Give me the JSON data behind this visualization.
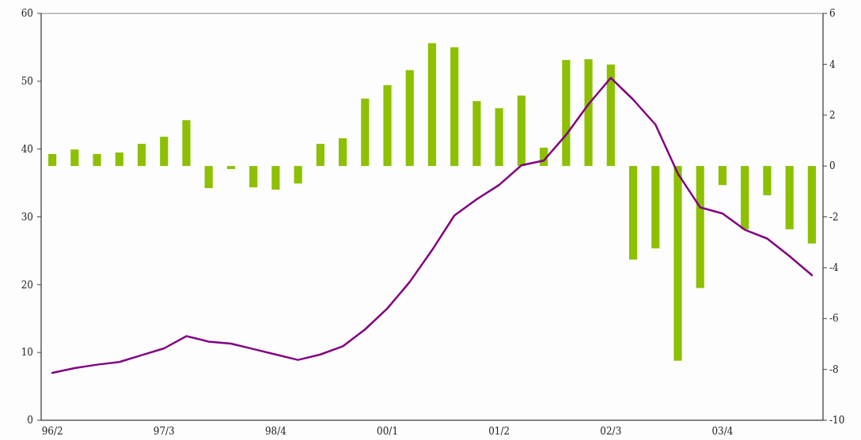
{
  "chart_data": {
    "type": "bar",
    "categories": [
      "96/2",
      null,
      null,
      null,
      null,
      "97/3",
      null,
      null,
      null,
      null,
      "98/4",
      null,
      null,
      null,
      null,
      "00/1",
      null,
      null,
      null,
      null,
      "01/2",
      null,
      null,
      null,
      null,
      "02/3",
      null,
      null,
      null,
      null,
      "03/4",
      null,
      null,
      null,
      null
    ],
    "series": [
      {
        "axis": "y2",
        "color": "#8cc000",
        "values": [
          0.47,
          0.65,
          0.47,
          0.53,
          0.87,
          1.15,
          1.8,
          -0.87,
          -0.12,
          -0.84,
          -0.93,
          -0.69,
          0.87,
          1.09,
          2.65,
          3.18,
          3.77,
          4.83,
          4.67,
          2.55,
          2.27,
          2.77,
          0.72,
          4.17,
          4.2,
          3.99,
          -3.68,
          -3.24,
          -7.66,
          -4.8,
          -0.75,
          -2.49,
          -1.15,
          -2.49,
          -3.05
        ]
      },
      {
        "type": "line",
        "color": "#800080",
        "values": [
          7.0,
          7.7,
          8.2,
          8.6,
          9.6,
          10.6,
          12.4,
          11.6,
          11.3,
          10.5,
          9.7,
          8.9,
          9.7,
          10.9,
          13.4,
          16.5,
          20.4,
          25.1,
          30.2,
          32.6,
          34.7,
          37.6,
          38.3,
          42.1,
          46.6,
          50.5,
          47.3,
          43.6,
          36.4,
          31.4,
          30.5,
          28.1,
          26.8,
          24.2,
          21.4
        ]
      }
    ],
    "ylim": [
      0,
      60
    ],
    "yticks": [
      0,
      10,
      20,
      30,
      40,
      50,
      60
    ],
    "y2lim": [
      -10,
      6
    ],
    "y2ticks": [
      -10,
      -8,
      -6,
      -4,
      -2,
      0,
      2,
      4,
      6
    ],
    "grid": false
  }
}
